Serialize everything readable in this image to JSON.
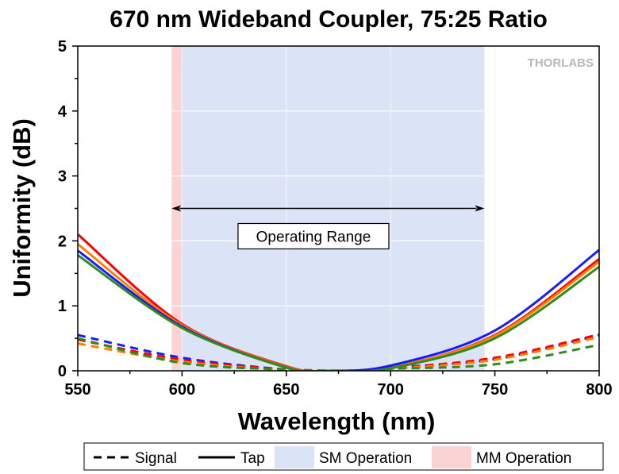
{
  "chart_data": {
    "type": "line",
    "title": "670 nm Wideband Coupler, 75:25 Ratio",
    "xlabel": "Wavelength (nm)",
    "ylabel": "Uniformity (dB)",
    "xlim": [
      550,
      800
    ],
    "ylim": [
      0,
      5
    ],
    "x_ticks": [
      "550",
      "600",
      "650",
      "700",
      "750",
      "800"
    ],
    "y_ticks": [
      "0",
      "1",
      "2",
      "3",
      "4",
      "5"
    ],
    "grid": true,
    "logo": "THORLABS",
    "shaded_regions": [
      {
        "name": "MM Operation",
        "x": [
          595,
          600
        ],
        "color": "#fad4d4"
      },
      {
        "name": "SM Operation",
        "x": [
          600,
          745
        ],
        "color": "#dbe3f6"
      }
    ],
    "annotation": {
      "text": "Operating Range",
      "x_start": 595,
      "x_end": 745,
      "y": 2.5
    },
    "series": [
      {
        "group": "Tap",
        "color": "#ff0000",
        "style": "solid",
        "x": [
          550,
          600,
          650,
          670,
          700,
          750,
          800
        ],
        "y": [
          2.1,
          0.72,
          0.07,
          0.0,
          0.05,
          0.55,
          1.72
        ]
      },
      {
        "group": "Tap",
        "color": "#ff8000",
        "style": "solid",
        "x": [
          550,
          600,
          650,
          670,
          700,
          750,
          800
        ],
        "y": [
          1.95,
          0.7,
          0.06,
          0.0,
          0.05,
          0.54,
          1.68
        ]
      },
      {
        "group": "Tap",
        "color": "#1a1aff",
        "style": "solid",
        "x": [
          550,
          600,
          650,
          670,
          700,
          750,
          800
        ],
        "y": [
          1.85,
          0.68,
          0.05,
          0.0,
          0.08,
          0.62,
          1.86
        ]
      },
      {
        "group": "Tap",
        "color": "#2e8b1e",
        "style": "solid",
        "x": [
          550,
          600,
          650,
          670,
          700,
          750,
          800
        ],
        "y": [
          1.78,
          0.66,
          0.05,
          0.0,
          0.04,
          0.5,
          1.6
        ]
      },
      {
        "group": "Signal",
        "color": "#1a1aff",
        "style": "dashed",
        "x": [
          550,
          600,
          650,
          680,
          700,
          750,
          800
        ],
        "y": [
          0.55,
          0.2,
          0.02,
          0.0,
          0.05,
          0.18,
          0.55
        ]
      },
      {
        "group": "Signal",
        "color": "#ff0000",
        "style": "dashed",
        "x": [
          550,
          600,
          650,
          680,
          700,
          750,
          800
        ],
        "y": [
          0.48,
          0.17,
          0.02,
          0.0,
          0.04,
          0.2,
          0.56
        ]
      },
      {
        "group": "Signal",
        "color": "#ff8000",
        "style": "dashed",
        "x": [
          550,
          600,
          650,
          680,
          700,
          750,
          800
        ],
        "y": [
          0.42,
          0.14,
          0.01,
          0.0,
          0.03,
          0.17,
          0.52
        ]
      },
      {
        "group": "Signal",
        "color": "#2e8b1e",
        "style": "dashed",
        "x": [
          550,
          600,
          650,
          690,
          700,
          750,
          800
        ],
        "y": [
          0.5,
          0.12,
          0.02,
          0.0,
          0.03,
          0.1,
          0.4
        ]
      }
    ],
    "legend": [
      {
        "label": "Signal",
        "kind": "dashed"
      },
      {
        "label": "Tap",
        "kind": "solid"
      },
      {
        "label": "SM Operation",
        "kind": "patch",
        "color": "#dbe3f6"
      },
      {
        "label": "MM Operation",
        "kind": "patch",
        "color": "#fad4d4"
      }
    ],
    "legend_position": "bottom"
  }
}
